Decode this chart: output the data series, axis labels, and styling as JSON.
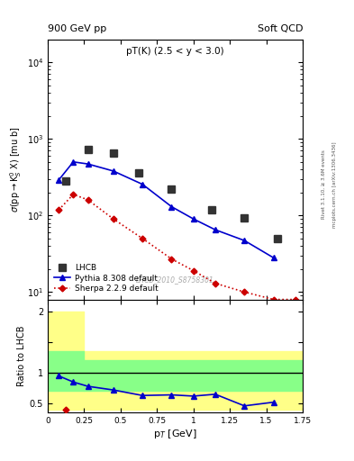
{
  "title_left": "900 GeV pp",
  "title_right": "Soft QCD",
  "annotation": "pT(K) (2.5 < y < 3.0)",
  "watermark": "LHCB_2010_S8758301",
  "right_label_top": "Rivet 3.1.10, ≥ 3.6M events",
  "right_label_bot": "mcplots.cern.ch [arXiv:1306.3436]",
  "lhcb_x": [
    0.125,
    0.275,
    0.45,
    0.625,
    0.85,
    1.125,
    1.35,
    1.575
  ],
  "lhcb_y": [
    280,
    720,
    650,
    360,
    220,
    120,
    93,
    50
  ],
  "pythia_x": [
    0.075,
    0.175,
    0.275,
    0.45,
    0.65,
    0.85,
    1.0,
    1.15,
    1.35,
    1.55
  ],
  "pythia_y": [
    290,
    500,
    470,
    380,
    255,
    130,
    90,
    65,
    47,
    28
  ],
  "sherpa_x": [
    0.075,
    0.175,
    0.275,
    0.45,
    0.65,
    0.85,
    1.0,
    1.15,
    1.35,
    1.55,
    1.7
  ],
  "sherpa_y": [
    118,
    188,
    160,
    90,
    50,
    27,
    19,
    13,
    10,
    8.0,
    8.0
  ],
  "ratio_pythia_x": [
    0.075,
    0.175,
    0.275,
    0.45,
    0.65,
    0.85,
    1.0,
    1.15,
    1.35,
    1.55
  ],
  "ratio_pythia_y": [
    0.95,
    0.85,
    0.78,
    0.72,
    0.63,
    0.64,
    0.62,
    0.65,
    0.46,
    0.52
  ],
  "ratio_sherpa_x": [
    0.125
  ],
  "ratio_sherpa_y": [
    0.4
  ],
  "band_xedges": [
    0.0,
    0.25,
    1.75
  ],
  "band_yellow_lo": [
    0.4,
    0.4
  ],
  "band_yellow_hi": [
    2.0,
    1.35
  ],
  "band_green_lo": [
    0.7,
    0.7
  ],
  "band_green_hi": [
    1.35,
    1.2
  ],
  "xlim": [
    0.0,
    1.75
  ],
  "ylim_main": [
    8,
    20000.0
  ],
  "ylim_ratio": [
    0.35,
    2.2
  ],
  "color_lhcb": "#333333",
  "color_pythia": "#0000cc",
  "color_sherpa": "#cc0000",
  "color_yellow": "#ffff88",
  "color_green": "#88ff88",
  "ylabel_ratio": "Ratio to LHCB"
}
